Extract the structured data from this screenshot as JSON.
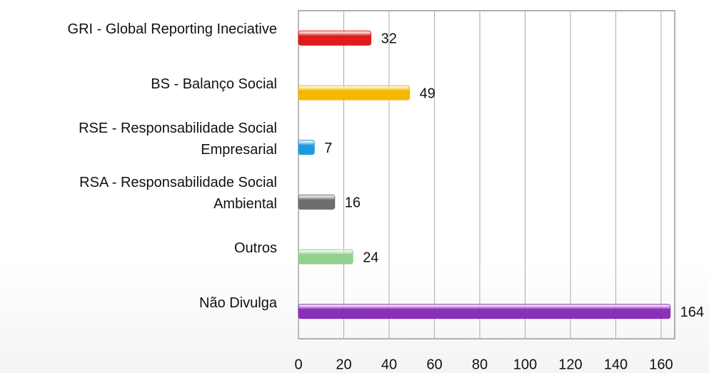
{
  "chart_data": {
    "type": "hbar",
    "categories": [
      "GRI - Global Reporting Ineciative",
      "BS - Balanço Social",
      "RSE - Responsabilidade Social\nEmpresarial",
      "RSA - Responsabilidade Social\nAmbiental",
      "Outros",
      "Não Divulga"
    ],
    "values": [
      32,
      49,
      7,
      16,
      24,
      164
    ],
    "colors": [
      "#e01b1b",
      "#f5b800",
      "#1e9be0",
      "#6d6d6d",
      "#92d08e",
      "#8a2fb8"
    ],
    "xlim": [
      0,
      166
    ],
    "xticks": [
      0,
      20,
      40,
      60,
      80,
      100,
      120,
      140,
      160
    ],
    "grid": true
  }
}
